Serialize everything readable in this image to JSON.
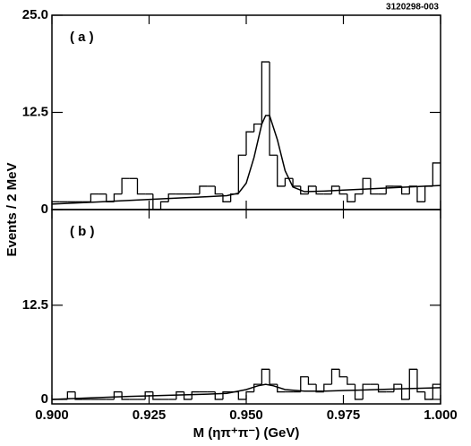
{
  "figure_id": "3120298-003",
  "chart_data": [
    {
      "type": "histogram",
      "label": "( a )",
      "ylabel": "Events / 2 MeV",
      "bins": [
        0.9,
        0.902,
        0.904,
        0.906,
        0.908,
        0.91,
        0.912,
        0.914,
        0.916,
        0.918,
        0.92,
        0.922,
        0.924,
        0.926,
        0.928,
        0.93,
        0.932,
        0.934,
        0.936,
        0.938,
        0.94,
        0.942,
        0.944,
        0.946,
        0.948,
        0.95,
        0.952,
        0.954,
        0.956,
        0.958,
        0.96,
        0.962,
        0.964,
        0.966,
        0.968,
        0.97,
        0.972,
        0.974,
        0.976,
        0.978,
        0.98,
        0.982,
        0.984,
        0.986,
        0.988,
        0.99,
        0.992,
        0.994,
        0.996,
        0.998,
        1.0
      ],
      "values": [
        1,
        1,
        1,
        1,
        1,
        2,
        2,
        1,
        2,
        4,
        4,
        2,
        2,
        0,
        1,
        2,
        2,
        2,
        2,
        3,
        3,
        2,
        1,
        2,
        7,
        10,
        11,
        19,
        7,
        3,
        4,
        3,
        2,
        3,
        2,
        2,
        3,
        2,
        1,
        2,
        4,
        2,
        2,
        3,
        3,
        2,
        3,
        1,
        3,
        6
      ],
      "fit": {
        "x": [
          0.9,
          0.91,
          0.92,
          0.93,
          0.94,
          0.945,
          0.948,
          0.95,
          0.952,
          0.954,
          0.955,
          0.956,
          0.958,
          0.96,
          0.962,
          0.965,
          0.97,
          0.98,
          0.99,
          1.0
        ],
        "values": [
          0.7,
          0.94,
          1.18,
          1.42,
          1.66,
          1.79,
          2.11,
          3.4,
          6.7,
          11.0,
          12.1,
          12.1,
          9.0,
          5.0,
          2.9,
          2.3,
          2.38,
          2.62,
          2.86,
          3.1
        ]
      },
      "xlim": [
        0.9,
        1.0
      ],
      "ylim": [
        0,
        25
      ],
      "yticks": [
        0,
        12.5,
        {
          "value": 25,
          "label": "25.0"
        }
      ]
    },
    {
      "type": "histogram",
      "label": "( b )",
      "xlabel": "M (ηπ⁺π⁻) (GeV)",
      "bins": [
        0.9,
        0.902,
        0.904,
        0.906,
        0.908,
        0.91,
        0.912,
        0.914,
        0.916,
        0.918,
        0.92,
        0.922,
        0.924,
        0.926,
        0.928,
        0.93,
        0.932,
        0.934,
        0.936,
        0.938,
        0.94,
        0.942,
        0.944,
        0.946,
        0.948,
        0.95,
        0.952,
        0.954,
        0.956,
        0.958,
        0.96,
        0.962,
        0.964,
        0.966,
        0.968,
        0.97,
        0.972,
        0.974,
        0.976,
        0.978,
        0.98,
        0.982,
        0.984,
        0.986,
        0.988,
        0.99,
        0.992,
        0.994,
        0.996,
        0.998,
        1.0
      ],
      "values": [
        0,
        0,
        1,
        0,
        0,
        0,
        0,
        0,
        1,
        0,
        0,
        0,
        1,
        0,
        0,
        0,
        1,
        0,
        1,
        1,
        1,
        0,
        1,
        1,
        0,
        1,
        2,
        4,
        2,
        1,
        1,
        1,
        3,
        2,
        1,
        2,
        4,
        3,
        2,
        0,
        2,
        2,
        1,
        1,
        2,
        0,
        4,
        1,
        0,
        2
      ],
      "fit": {
        "x": [
          0.9,
          0.91,
          0.92,
          0.93,
          0.94,
          0.945,
          0.95,
          0.953,
          0.955,
          0.957,
          0.96,
          0.965,
          0.97,
          0.98,
          0.99,
          1.0
        ],
        "values": [
          0.0,
          0.2,
          0.4,
          0.55,
          0.7,
          0.8,
          1.3,
          1.8,
          2.0,
          1.8,
          1.3,
          1.1,
          1.1,
          1.25,
          1.4,
          1.55
        ]
      },
      "xlim": [
        0.9,
        1.0
      ],
      "ylim": [
        -0.6,
        25.2
      ],
      "yticks": [
        0,
        12.5
      ],
      "xticks": [
        {
          "value": 0.9,
          "label": "0.900"
        },
        {
          "value": 0.925,
          "label": "0.925"
        },
        {
          "value": 0.95,
          "label": "0.950"
        },
        {
          "value": 0.975,
          "label": "0.975"
        },
        {
          "value": 1.0,
          "label": "1.000"
        }
      ]
    }
  ]
}
